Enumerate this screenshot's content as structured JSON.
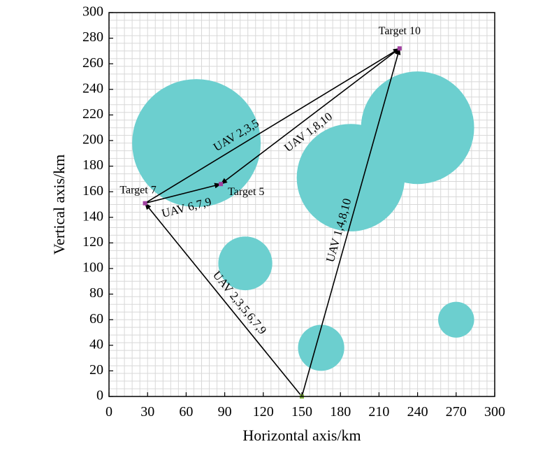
{
  "chart_data": {
    "type": "scatter",
    "xlabel": "Horizontal axis/km",
    "ylabel": "Vertical axis/km",
    "xlim": [
      0,
      300
    ],
    "ylim": [
      0,
      300
    ],
    "xticks": [
      "0",
      "30",
      "60",
      "90",
      "120",
      "150",
      "180",
      "210",
      "240",
      "270",
      "300"
    ],
    "yticks": [
      "0",
      "20",
      "40",
      "60",
      "80",
      "100",
      "120",
      "140",
      "160",
      "180",
      "200",
      "220",
      "240",
      "260",
      "280",
      "300"
    ],
    "minor_grid_step": 6,
    "grid": true,
    "obstacle_color": "#6ccfcf",
    "target_color": "#a040a0",
    "start_color": "#80b040",
    "obstacles": [
      {
        "cx": 68,
        "cy": 198,
        "r": 50
      },
      {
        "cx": 188,
        "cy": 171,
        "r": 42
      },
      {
        "cx": 240,
        "cy": 210,
        "r": 44
      },
      {
        "cx": 106,
        "cy": 104,
        "r": 21
      },
      {
        "cx": 165,
        "cy": 38,
        "r": 18
      },
      {
        "cx": 270,
        "cy": 60,
        "r": 14
      }
    ],
    "start": {
      "x": 150,
      "y": 0
    },
    "targets": [
      {
        "name": "Target 7",
        "x": 28,
        "y": 151
      },
      {
        "name": "Target 5",
        "x": 87,
        "y": 166
      },
      {
        "name": "Target 10",
        "x": 226,
        "y": 272
      }
    ],
    "paths": [
      {
        "label": "UAV 2,3,5,6,7,9",
        "from": [
          150,
          0
        ],
        "to": [
          28,
          151
        ]
      },
      {
        "label": "UAV 1,4,8,10",
        "from": [
          150,
          0
        ],
        "to": [
          226,
          272
        ]
      },
      {
        "label": "UAV 6,7,9",
        "from": [
          28,
          151
        ],
        "to": [
          87,
          166
        ]
      },
      {
        "label": "UAV 2,3,5",
        "from": [
          28,
          151
        ],
        "to": [
          226,
          272
        ]
      },
      {
        "label": "UAV 1,8,10",
        "from": [
          226,
          272
        ],
        "to": [
          87,
          166
        ]
      }
    ]
  }
}
